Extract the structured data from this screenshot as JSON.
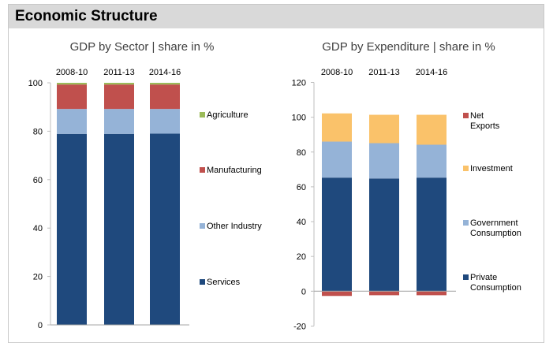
{
  "header": {
    "title": "Economic Structure"
  },
  "chart_data": [
    {
      "type": "bar",
      "stacked": true,
      "title": "GDP by Sector | share in %",
      "categories": [
        "2008-10",
        "2011-13",
        "2014-16"
      ],
      "ylim": [
        0,
        100
      ],
      "yticks": [
        0,
        20,
        40,
        60,
        80,
        100
      ],
      "legend_position": "right",
      "series": [
        {
          "name": "Services",
          "values": [
            78.9,
            78.9,
            79.0
          ],
          "color": "#1f497d"
        },
        {
          "name": "Other Industry",
          "values": [
            10.3,
            10.3,
            10.2
          ],
          "color": "#95b3d7"
        },
        {
          "name": "Manufacturing",
          "values": [
            10.1,
            10.1,
            10.1
          ],
          "color": "#c0504d"
        },
        {
          "name": "Agriculture",
          "values": [
            0.7,
            0.7,
            0.7
          ],
          "color": "#9bbb59"
        }
      ]
    },
    {
      "type": "bar",
      "stacked": true,
      "title": "GDP by Expenditure | share in %",
      "categories": [
        "2008-10",
        "2011-13",
        "2014-16"
      ],
      "ylim": [
        -20,
        120
      ],
      "yticks": [
        -20,
        0,
        20,
        40,
        60,
        80,
        100,
        120
      ],
      "legend_position": "right",
      "series": [
        {
          "name": "Private Consumption",
          "values": [
            65.3,
            64.8,
            65.3
          ],
          "color": "#1f497d"
        },
        {
          "name": "Government Consumption",
          "values": [
            20.7,
            20.3,
            18.9
          ],
          "color": "#95b3d7"
        },
        {
          "name": "Investment",
          "values": [
            16.2,
            16.3,
            17.2
          ],
          "color": "#fac26a"
        },
        {
          "name": "Net Exports",
          "values": [
            -2.7,
            -2.3,
            -2.3
          ],
          "color": "#c0504d"
        }
      ]
    }
  ]
}
